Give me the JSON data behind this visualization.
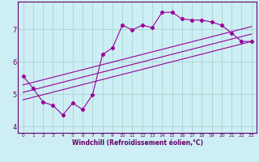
{
  "title": "",
  "xlabel": "Windchill (Refroidissement éolien,°C)",
  "ylabel": "",
  "bg_color": "#cdeef5",
  "line_color": "#990099",
  "grid_color": "#aad4cc",
  "axis_color": "#660066",
  "spine_color": "#660066",
  "xlim": [
    -0.5,
    23.5
  ],
  "ylim": [
    3.8,
    7.85
  ],
  "yticks": [
    4,
    5,
    6,
    7
  ],
  "xticks": [
    0,
    1,
    2,
    3,
    4,
    5,
    6,
    7,
    8,
    9,
    10,
    11,
    12,
    13,
    14,
    15,
    16,
    17,
    18,
    19,
    20,
    21,
    22,
    23
  ],
  "main_x": [
    0,
    1,
    2,
    3,
    4,
    5,
    6,
    7,
    8,
    9,
    10,
    11,
    12,
    13,
    14,
    15,
    16,
    17,
    18,
    19,
    20,
    21,
    22,
    23
  ],
  "main_y": [
    5.55,
    5.18,
    4.75,
    4.65,
    4.35,
    4.72,
    4.52,
    4.98,
    6.22,
    6.42,
    7.12,
    6.98,
    7.12,
    7.05,
    7.52,
    7.52,
    7.32,
    7.28,
    7.28,
    7.22,
    7.12,
    6.88,
    6.62,
    6.62
  ],
  "line1_x": [
    0,
    23
  ],
  "line1_y": [
    4.82,
    6.62
  ],
  "line2_x": [
    0,
    23
  ],
  "line2_y": [
    5.05,
    6.85
  ],
  "line3_x": [
    0,
    23
  ],
  "line3_y": [
    5.28,
    7.08
  ],
  "xlabel_fontsize": 5.5,
  "xtick_fontsize": 4.3,
  "ytick_fontsize": 6.0,
  "linewidth": 0.8,
  "markersize": 2.2
}
